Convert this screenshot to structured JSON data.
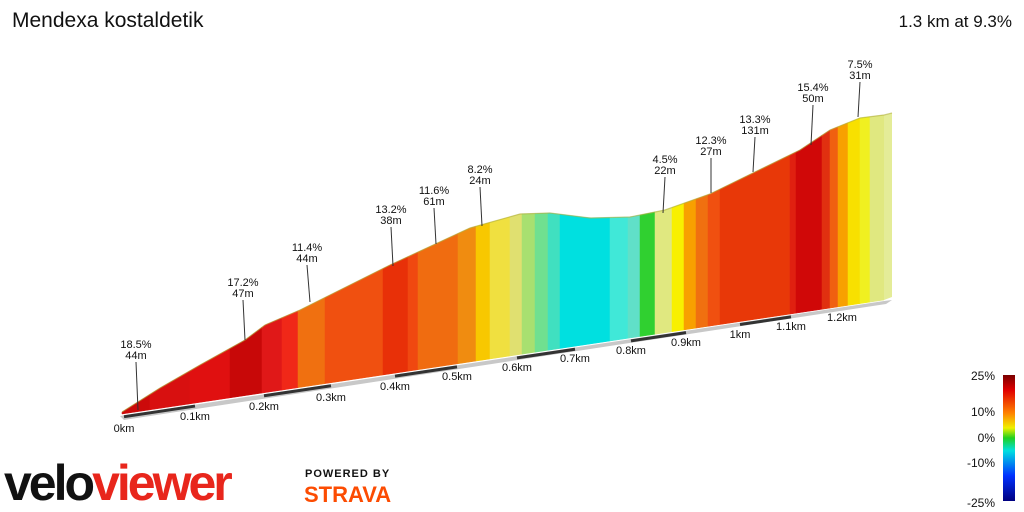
{
  "header": {
    "title": "Mendexa kostaldetik",
    "summary": "1.3 km at 9.3%"
  },
  "segments": [
    {
      "grade": "18.5%",
      "length": "44m"
    },
    {
      "grade": "17.2%",
      "length": "47m"
    },
    {
      "grade": "11.4%",
      "length": "44m"
    },
    {
      "grade": "13.2%",
      "length": "38m"
    },
    {
      "grade": "11.6%",
      "length": "61m"
    },
    {
      "grade": "8.2%",
      "length": "24m"
    },
    {
      "grade": "4.5%",
      "length": "22m"
    },
    {
      "grade": "12.3%",
      "length": "27m"
    },
    {
      "grade": "13.3%",
      "length": "131m"
    },
    {
      "grade": "15.4%",
      "length": "50m"
    },
    {
      "grade": "7.5%",
      "length": "31m"
    }
  ],
  "distance_labels": [
    "0km",
    "0.1km",
    "0.2km",
    "0.3km",
    "0.4km",
    "0.5km",
    "0.6km",
    "0.7km",
    "0.8km",
    "0.9km",
    "1km",
    "1.1km",
    "1.2km"
  ],
  "legend": {
    "labels": [
      "25%",
      "10%",
      "0%",
      "-10%",
      "-25%"
    ]
  },
  "branding": {
    "logo_left": "velo",
    "logo_right": "viewer",
    "powered_by": "POWERED BY",
    "strava": "STRAVA"
  }
}
